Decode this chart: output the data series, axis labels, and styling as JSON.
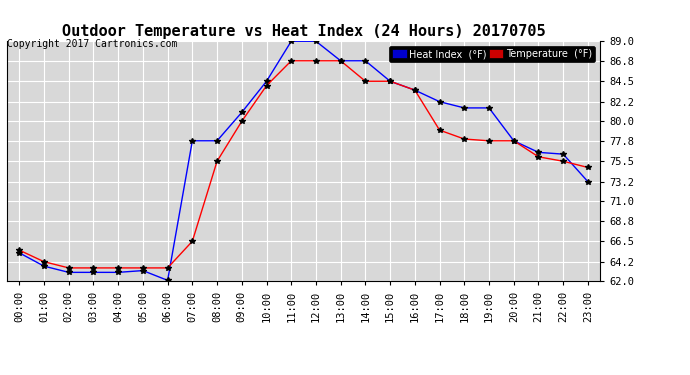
{
  "title": "Outdoor Temperature vs Heat Index (24 Hours) 20170705",
  "copyright": "Copyright 2017 Cartronics.com",
  "x_labels": [
    "00:00",
    "01:00",
    "02:00",
    "03:00",
    "04:00",
    "05:00",
    "06:00",
    "07:00",
    "08:00",
    "09:00",
    "10:00",
    "11:00",
    "12:00",
    "13:00",
    "14:00",
    "15:00",
    "16:00",
    "17:00",
    "18:00",
    "19:00",
    "20:00",
    "21:00",
    "22:00",
    "23:00"
  ],
  "heat_index": [
    65.2,
    63.7,
    63.0,
    63.0,
    63.0,
    63.2,
    62.1,
    77.8,
    77.8,
    81.0,
    84.5,
    89.0,
    89.0,
    86.8,
    86.8,
    84.5,
    83.5,
    82.2,
    81.5,
    81.5,
    77.8,
    76.5,
    76.3,
    73.2
  ],
  "temperature": [
    65.5,
    64.2,
    63.5,
    63.5,
    63.5,
    63.5,
    63.5,
    66.5,
    75.5,
    80.0,
    84.0,
    86.8,
    86.8,
    86.8,
    84.5,
    84.5,
    83.5,
    79.0,
    78.0,
    77.8,
    77.8,
    76.0,
    75.5,
    74.8
  ],
  "ylim": [
    62.0,
    89.0
  ],
  "yticks": [
    62.0,
    64.2,
    66.5,
    68.8,
    71.0,
    73.2,
    75.5,
    77.8,
    80.0,
    82.2,
    84.5,
    86.8,
    89.0
  ],
  "heat_index_color": "#0000FF",
  "temp_color": "#FF0000",
  "background_color": "#FFFFFF",
  "plot_bg_color": "#D8D8D8",
  "grid_color": "#FFFFFF",
  "legend_hi_bg": "#0000CC",
  "legend_temp_bg": "#CC0000",
  "title_fontsize": 11,
  "copyright_fontsize": 7,
  "axis_fontsize": 7.5,
  "marker": "*",
  "marker_size": 4,
  "line_width": 1.0
}
